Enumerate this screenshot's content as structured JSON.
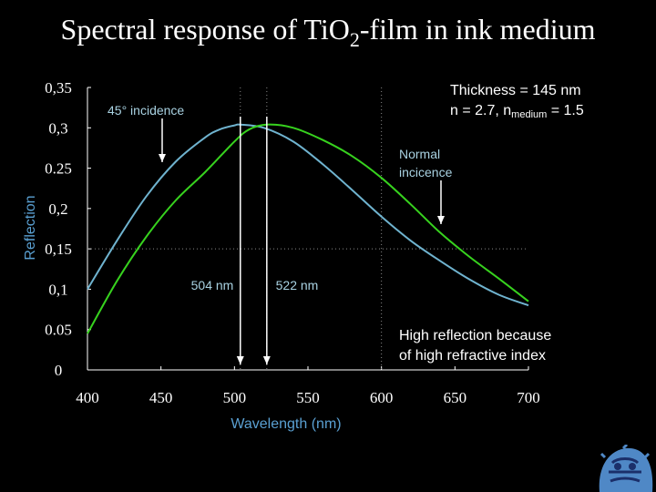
{
  "title": {
    "prefix": "Spectral response of Ti",
    "sub1": "O",
    "sub2": "2",
    "suffix": "-film in ink medium"
  },
  "notes": {
    "thickness": "Thickness = 145 nm",
    "n_line_a": "n = 2.7, n",
    "n_line_sub": "medium",
    "n_line_b": " = 1.5",
    "high_line1": "High reflection because",
    "high_line2": "of high refractive index"
  },
  "colors": {
    "series_45": "#6fb3cf",
    "series_normal": "#37d21e",
    "axis": "#ffffff",
    "annotation": "#a9d2e2",
    "axis_title": "#5aa0d2"
  },
  "chart_data": {
    "type": "line",
    "xlabel": "Wavelength (nm)",
    "ylabel": "Reflection",
    "xlim": [
      400,
      700
    ],
    "ylim": [
      0,
      0.35
    ],
    "xticks": [
      400,
      450,
      500,
      550,
      600,
      650,
      700
    ],
    "yticks": [
      0,
      0.05,
      0.1,
      0.15,
      0.2,
      0.25,
      0.3,
      0.35
    ],
    "ytick_labels": [
      "0",
      "0.05",
      "0,1",
      "0,15",
      "0,2",
      "0.25",
      "0,3",
      "0,35"
    ],
    "grid": false,
    "series": [
      {
        "key": "incidence_45",
        "color": "#6fb3cf",
        "x": [
          400,
          420,
          440,
          460,
          480,
          490,
          500,
          504,
          520,
          540,
          560,
          580,
          600,
          620,
          640,
          660,
          680,
          700
        ],
        "y": [
          0.1,
          0.16,
          0.215,
          0.258,
          0.288,
          0.298,
          0.303,
          0.304,
          0.3,
          0.283,
          0.255,
          0.223,
          0.19,
          0.16,
          0.135,
          0.112,
          0.093,
          0.08
        ]
      },
      {
        "key": "normal",
        "color": "#37d21e",
        "x": [
          400,
          420,
          440,
          460,
          480,
          500,
          510,
          522,
          540,
          560,
          580,
          600,
          620,
          640,
          660,
          680,
          700
        ],
        "y": [
          0.045,
          0.11,
          0.165,
          0.21,
          0.245,
          0.283,
          0.298,
          0.304,
          0.3,
          0.285,
          0.265,
          0.238,
          0.205,
          0.17,
          0.14,
          0.113,
          0.085
        ]
      }
    ],
    "annotations": [
      {
        "key": "incidence45",
        "label": "45° incidence"
      },
      {
        "key": "normal1",
        "label": "Normal"
      },
      {
        "key": "normal2",
        "label": "incicence"
      },
      {
        "key": "nm504",
        "label": "504 nm"
      },
      {
        "key": "nm522",
        "label": "522 nm"
      }
    ],
    "reference_lines": {
      "x": [
        504,
        522,
        600
      ],
      "y": [
        0.15
      ]
    }
  }
}
